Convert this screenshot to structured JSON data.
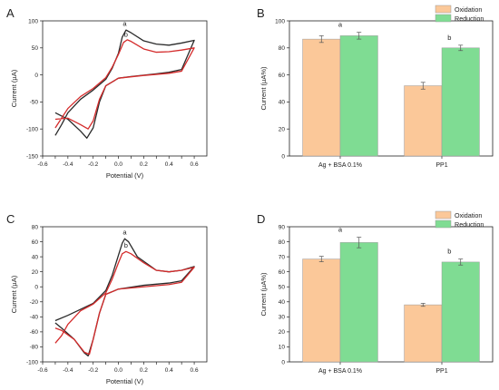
{
  "chart_data": [
    {
      "panel": "A",
      "type": "line",
      "xlabel": "Potential (V)",
      "ylabel": "Current (µA)",
      "xlim": [
        -0.6,
        0.7
      ],
      "ylim": [
        -150,
        100
      ],
      "xticks": [
        -0.6,
        -0.5,
        -0.4,
        -0.3,
        -0.2,
        -0.1,
        0.0,
        0.1,
        0.2,
        0.3,
        0.4,
        0.5,
        0.6
      ],
      "xtick_labels": [
        "-0.6",
        "-0.4",
        "-0.2",
        "0.0",
        "0.2",
        "0.4",
        "0.6"
      ],
      "ytick_labels": [
        "-150",
        "-100",
        "-50",
        "0",
        "50",
        "100"
      ],
      "yticks_labeled": [
        -150,
        -100,
        -50,
        0,
        50,
        100
      ],
      "annotations": [
        {
          "text": "a",
          "x": 0.05,
          "y": 91
        },
        {
          "text": "b",
          "x": 0.06,
          "y": 71
        }
      ],
      "series": [
        {
          "label": "a",
          "color": "#2a2a2a",
          "forward": [
            [
              -0.5,
              -112
            ],
            [
              -0.45,
              -92
            ],
            [
              -0.4,
              -70
            ],
            [
              -0.3,
              -45
            ],
            [
              -0.2,
              -28
            ],
            [
              -0.1,
              -8
            ],
            [
              -0.05,
              12
            ],
            [
              0.0,
              40
            ],
            [
              0.03,
              70
            ],
            [
              0.06,
              83
            ],
            [
              0.1,
              78
            ],
            [
              0.2,
              63
            ],
            [
              0.3,
              57
            ],
            [
              0.4,
              55
            ],
            [
              0.5,
              59
            ],
            [
              0.6,
              64
            ]
          ],
          "reverse": [
            [
              0.6,
              64
            ],
            [
              0.5,
              10
            ],
            [
              0.4,
              5
            ],
            [
              0.3,
              2
            ],
            [
              0.1,
              -3
            ],
            [
              0.0,
              -6
            ],
            [
              -0.1,
              -20
            ],
            [
              -0.15,
              -50
            ],
            [
              -0.2,
              -98
            ],
            [
              -0.25,
              -117
            ],
            [
              -0.3,
              -104
            ],
            [
              -0.4,
              -82
            ],
            [
              -0.5,
              -70
            ]
          ]
        },
        {
          "label": "b",
          "color": "#d42b2b",
          "forward": [
            [
              -0.5,
              -98
            ],
            [
              -0.45,
              -80
            ],
            [
              -0.4,
              -62
            ],
            [
              -0.3,
              -40
            ],
            [
              -0.2,
              -25
            ],
            [
              -0.1,
              -5
            ],
            [
              -0.05,
              14
            ],
            [
              0.0,
              38
            ],
            [
              0.04,
              60
            ],
            [
              0.07,
              65
            ],
            [
              0.1,
              62
            ],
            [
              0.2,
              48
            ],
            [
              0.3,
              42
            ],
            [
              0.4,
              43
            ],
            [
              0.5,
              46
            ],
            [
              0.6,
              50
            ]
          ],
          "reverse": [
            [
              0.6,
              50
            ],
            [
              0.5,
              7
            ],
            [
              0.4,
              3
            ],
            [
              0.2,
              -1
            ],
            [
              0.0,
              -6
            ],
            [
              -0.1,
              -20
            ],
            [
              -0.15,
              -45
            ],
            [
              -0.2,
              -85
            ],
            [
              -0.24,
              -100
            ],
            [
              -0.3,
              -92
            ],
            [
              -0.4,
              -80
            ],
            [
              -0.5,
              -82
            ]
          ]
        }
      ]
    },
    {
      "panel": "B",
      "type": "bar",
      "ylabel": "Current (µA%)",
      "ylim": [
        0,
        100
      ],
      "yticks": [
        0,
        20,
        40,
        60,
        80,
        100
      ],
      "categories": [
        "Ag + BSA 0.1%",
        "PP1"
      ],
      "letters": [
        "a",
        "b"
      ],
      "legend": "top-right",
      "series": [
        {
          "name": "Oxidation",
          "color": "#fbc899",
          "values": [
            86.5,
            52.0
          ],
          "errors": [
            2.5,
            2.5
          ]
        },
        {
          "name": "Reduction",
          "color": "#7fdc93",
          "values": [
            89.0,
            80.0
          ],
          "errors": [
            2.5,
            2.0
          ]
        }
      ]
    },
    {
      "panel": "C",
      "type": "line",
      "xlabel": "Potential (V)",
      "ylabel": "Current (µA)",
      "xlim": [
        -0.6,
        0.7
      ],
      "ylim": [
        -100,
        80
      ],
      "xticks": [
        -0.6,
        -0.5,
        -0.4,
        -0.3,
        -0.2,
        -0.1,
        0.0,
        0.1,
        0.2,
        0.3,
        0.4,
        0.5,
        0.6
      ],
      "xtick_labels": [
        "-0.6",
        "-0.4",
        "-0.2",
        "0.0",
        "0.2",
        "0.4",
        "0.6"
      ],
      "ytick_labels": [
        "-100",
        "-80",
        "-60",
        "-40",
        "-20",
        "0",
        "20",
        "40",
        "60",
        "80"
      ],
      "yticks_labeled": [
        -100,
        -80,
        -60,
        -40,
        -20,
        0,
        20,
        40,
        60,
        80
      ],
      "annotations": [
        {
          "text": "a",
          "x": 0.05,
          "y": 70
        },
        {
          "text": "b",
          "x": 0.06,
          "y": 52
        }
      ],
      "series": [
        {
          "label": "a",
          "color": "#2a2a2a",
          "forward": [
            [
              -0.5,
              -45
            ],
            [
              -0.4,
              -38
            ],
            [
              -0.3,
              -30
            ],
            [
              -0.2,
              -22
            ],
            [
              -0.1,
              -5
            ],
            [
              -0.05,
              15
            ],
            [
              0.0,
              42
            ],
            [
              0.03,
              58
            ],
            [
              0.05,
              64
            ],
            [
              0.08,
              60
            ],
            [
              0.15,
              40
            ],
            [
              0.3,
              22
            ],
            [
              0.4,
              20
            ],
            [
              0.5,
              22
            ],
            [
              0.6,
              27
            ]
          ],
          "reverse": [
            [
              0.6,
              27
            ],
            [
              0.5,
              8
            ],
            [
              0.4,
              5
            ],
            [
              0.2,
              2
            ],
            [
              0.0,
              -3
            ],
            [
              -0.1,
              -10
            ],
            [
              -0.15,
              -35
            ],
            [
              -0.2,
              -70
            ],
            [
              -0.24,
              -92
            ],
            [
              -0.27,
              -88
            ],
            [
              -0.35,
              -70
            ],
            [
              -0.45,
              -55
            ],
            [
              -0.5,
              -48
            ]
          ]
        },
        {
          "label": "b",
          "color": "#d42b2b",
          "forward": [
            [
              -0.5,
              -75
            ],
            [
              -0.45,
              -65
            ],
            [
              -0.4,
              -50
            ],
            [
              -0.3,
              -32
            ],
            [
              -0.2,
              -23
            ],
            [
              -0.1,
              -8
            ],
            [
              -0.05,
              10
            ],
            [
              0.0,
              32
            ],
            [
              0.03,
              44
            ],
            [
              0.06,
              47
            ],
            [
              0.1,
              44
            ],
            [
              0.2,
              32
            ],
            [
              0.3,
              22
            ],
            [
              0.4,
              20
            ],
            [
              0.5,
              22
            ],
            [
              0.6,
              26
            ]
          ],
          "reverse": [
            [
              0.6,
              26
            ],
            [
              0.5,
              6
            ],
            [
              0.4,
              3
            ],
            [
              0.2,
              0
            ],
            [
              0.0,
              -3
            ],
            [
              -0.1,
              -10
            ],
            [
              -0.15,
              -35
            ],
            [
              -0.2,
              -70
            ],
            [
              -0.23,
              -90
            ],
            [
              -0.27,
              -87
            ],
            [
              -0.35,
              -70
            ],
            [
              -0.45,
              -58
            ],
            [
              -0.5,
              -55
            ]
          ]
        }
      ]
    },
    {
      "panel": "D",
      "type": "bar",
      "ylabel": "Current (µA%)",
      "ylim": [
        0,
        90
      ],
      "yticks": [
        0,
        10,
        20,
        30,
        40,
        50,
        60,
        70,
        80,
        90
      ],
      "categories": [
        "Ag + BSA 0.1%",
        "PP1"
      ],
      "letters": [
        "a",
        "b"
      ],
      "legend": "top-right",
      "series": [
        {
          "name": "Oxidation",
          "color": "#fbc899",
          "values": [
            68.5,
            38.0
          ],
          "errors": [
            1.8,
            1.0
          ]
        },
        {
          "name": "Reduction",
          "color": "#7fdc93",
          "values": [
            79.5,
            66.5
          ],
          "errors": [
            3.5,
            2.0
          ]
        }
      ]
    }
  ]
}
